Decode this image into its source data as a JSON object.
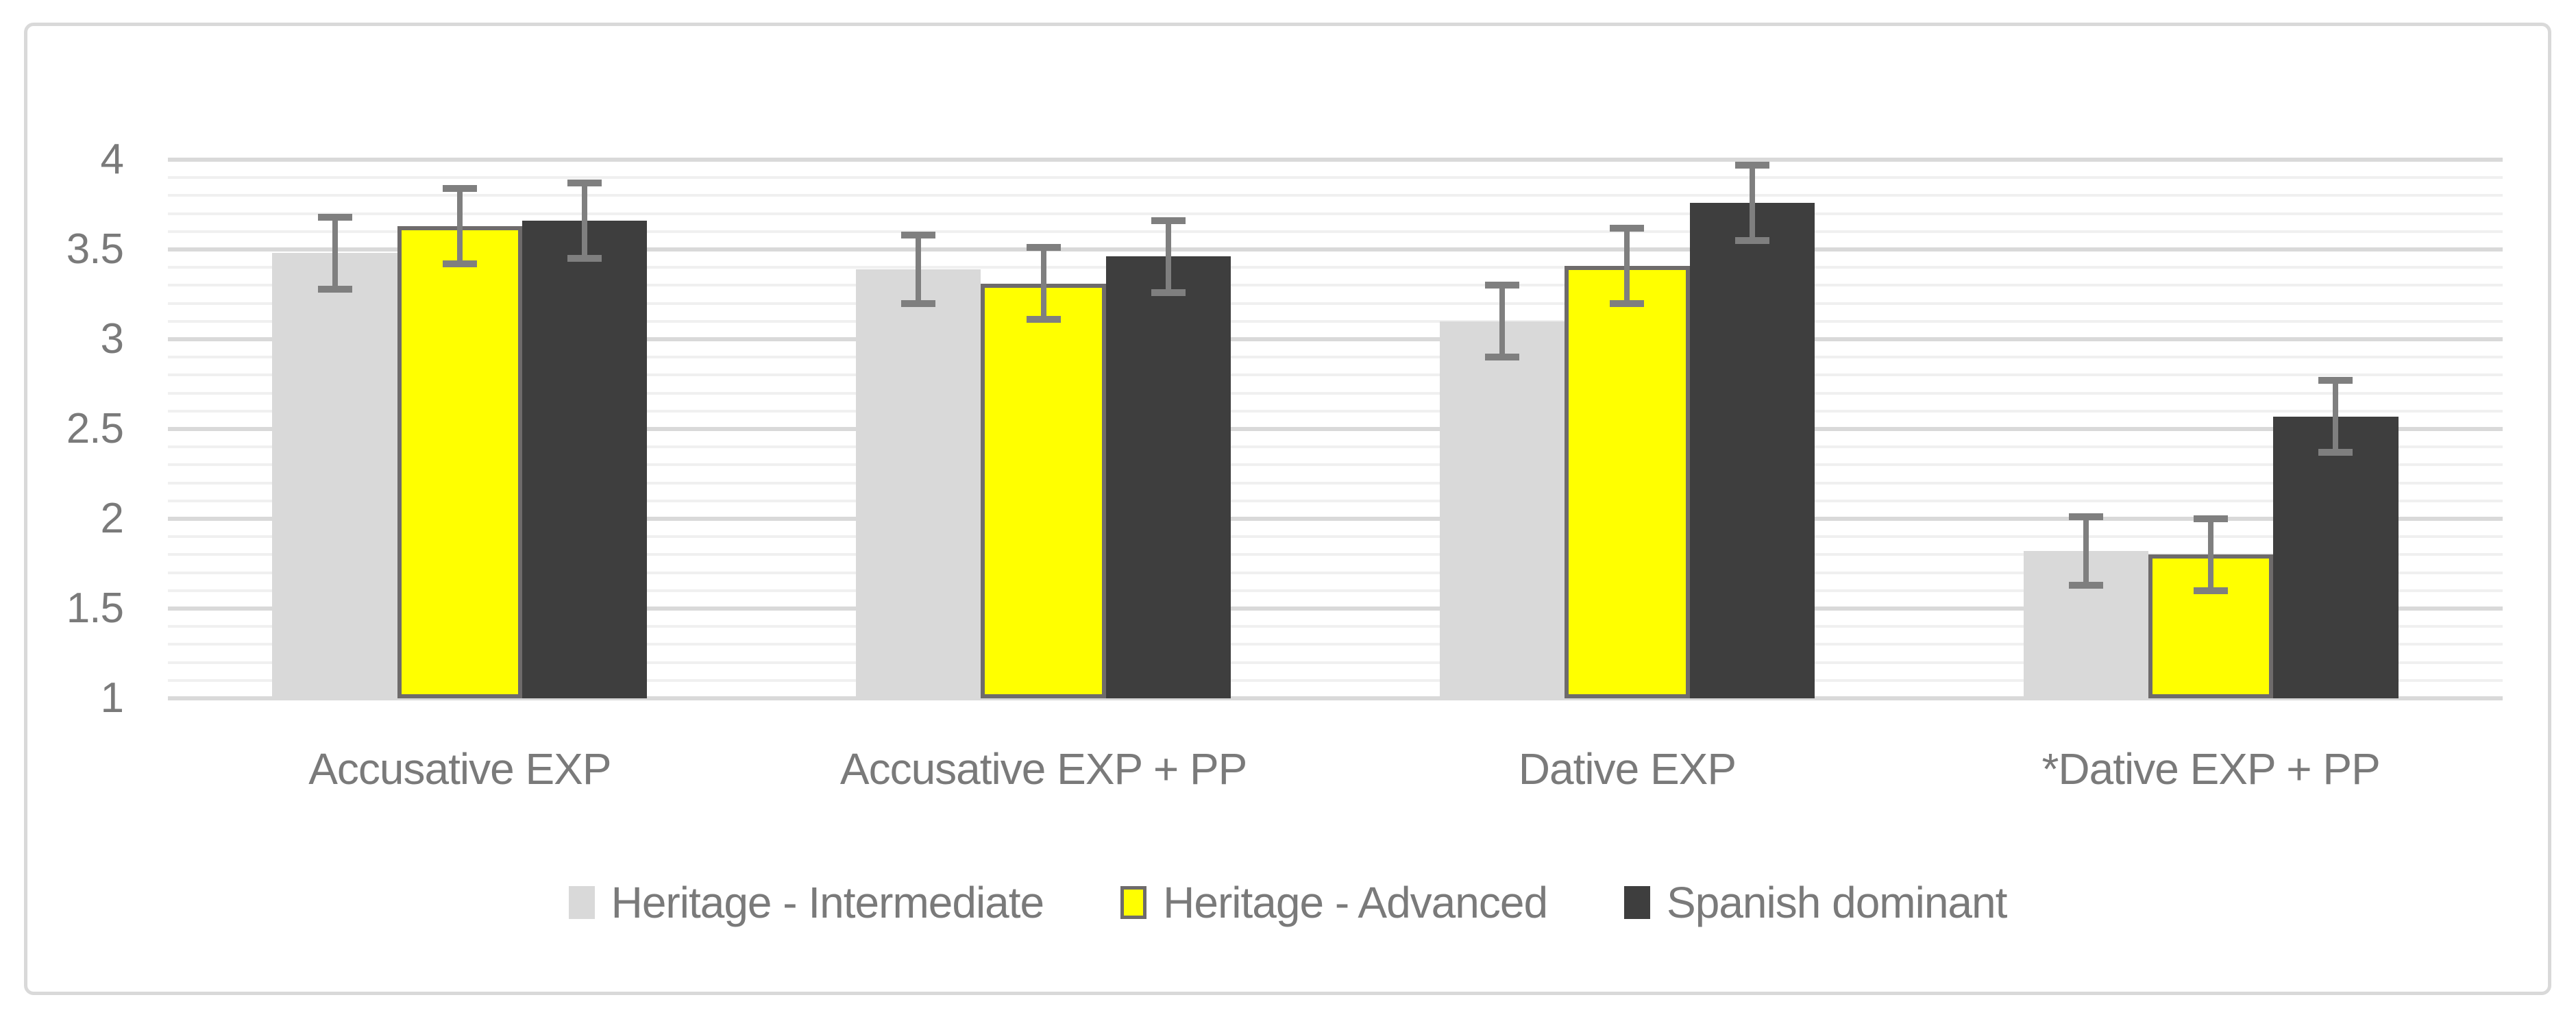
{
  "frame": {
    "border_color": "#d9d9d9",
    "background": "#ffffff"
  },
  "chart_data": {
    "type": "bar",
    "title": "",
    "categories": [
      "Accusative EXP",
      "Accusative EXP + PP",
      "Dative EXP",
      "*Dative EXP + PP"
    ],
    "series": [
      {
        "name": "Heritage - Intermediate",
        "color": "#d9d9d9",
        "border_color": null,
        "values": [
          3.48,
          3.39,
          3.1,
          1.82
        ],
        "errors": [
          0.2,
          0.19,
          0.2,
          0.19
        ]
      },
      {
        "name": "Heritage - Advanced",
        "color": "#ffff00",
        "border_color": "#6e6b6b",
        "values": [
          3.63,
          3.31,
          3.41,
          1.8
        ],
        "errors": [
          0.21,
          0.2,
          0.21,
          0.2
        ]
      },
      {
        "name": "Spanish dominant",
        "color": "#3e3e3e",
        "border_color": null,
        "values": [
          3.66,
          3.46,
          3.76,
          2.57
        ],
        "errors": [
          0.21,
          0.2,
          0.21,
          0.2
        ]
      }
    ],
    "y_axis": {
      "min": 1,
      "max": 4,
      "major_step": 0.5,
      "minor_step": 0.1,
      "tick_labels": [
        "4",
        "3.5",
        "3",
        "2.5",
        "2",
        "1.5",
        "1"
      ]
    },
    "gridlines": {
      "major_color": "#d9d9d9",
      "minor_color": "#f0f0f0",
      "grid_on": true
    },
    "error_bar_color": "#7f7f7f",
    "label_color": "#7a7a7a",
    "legend_position": "bottom",
    "ylim": [
      1,
      4
    ]
  }
}
